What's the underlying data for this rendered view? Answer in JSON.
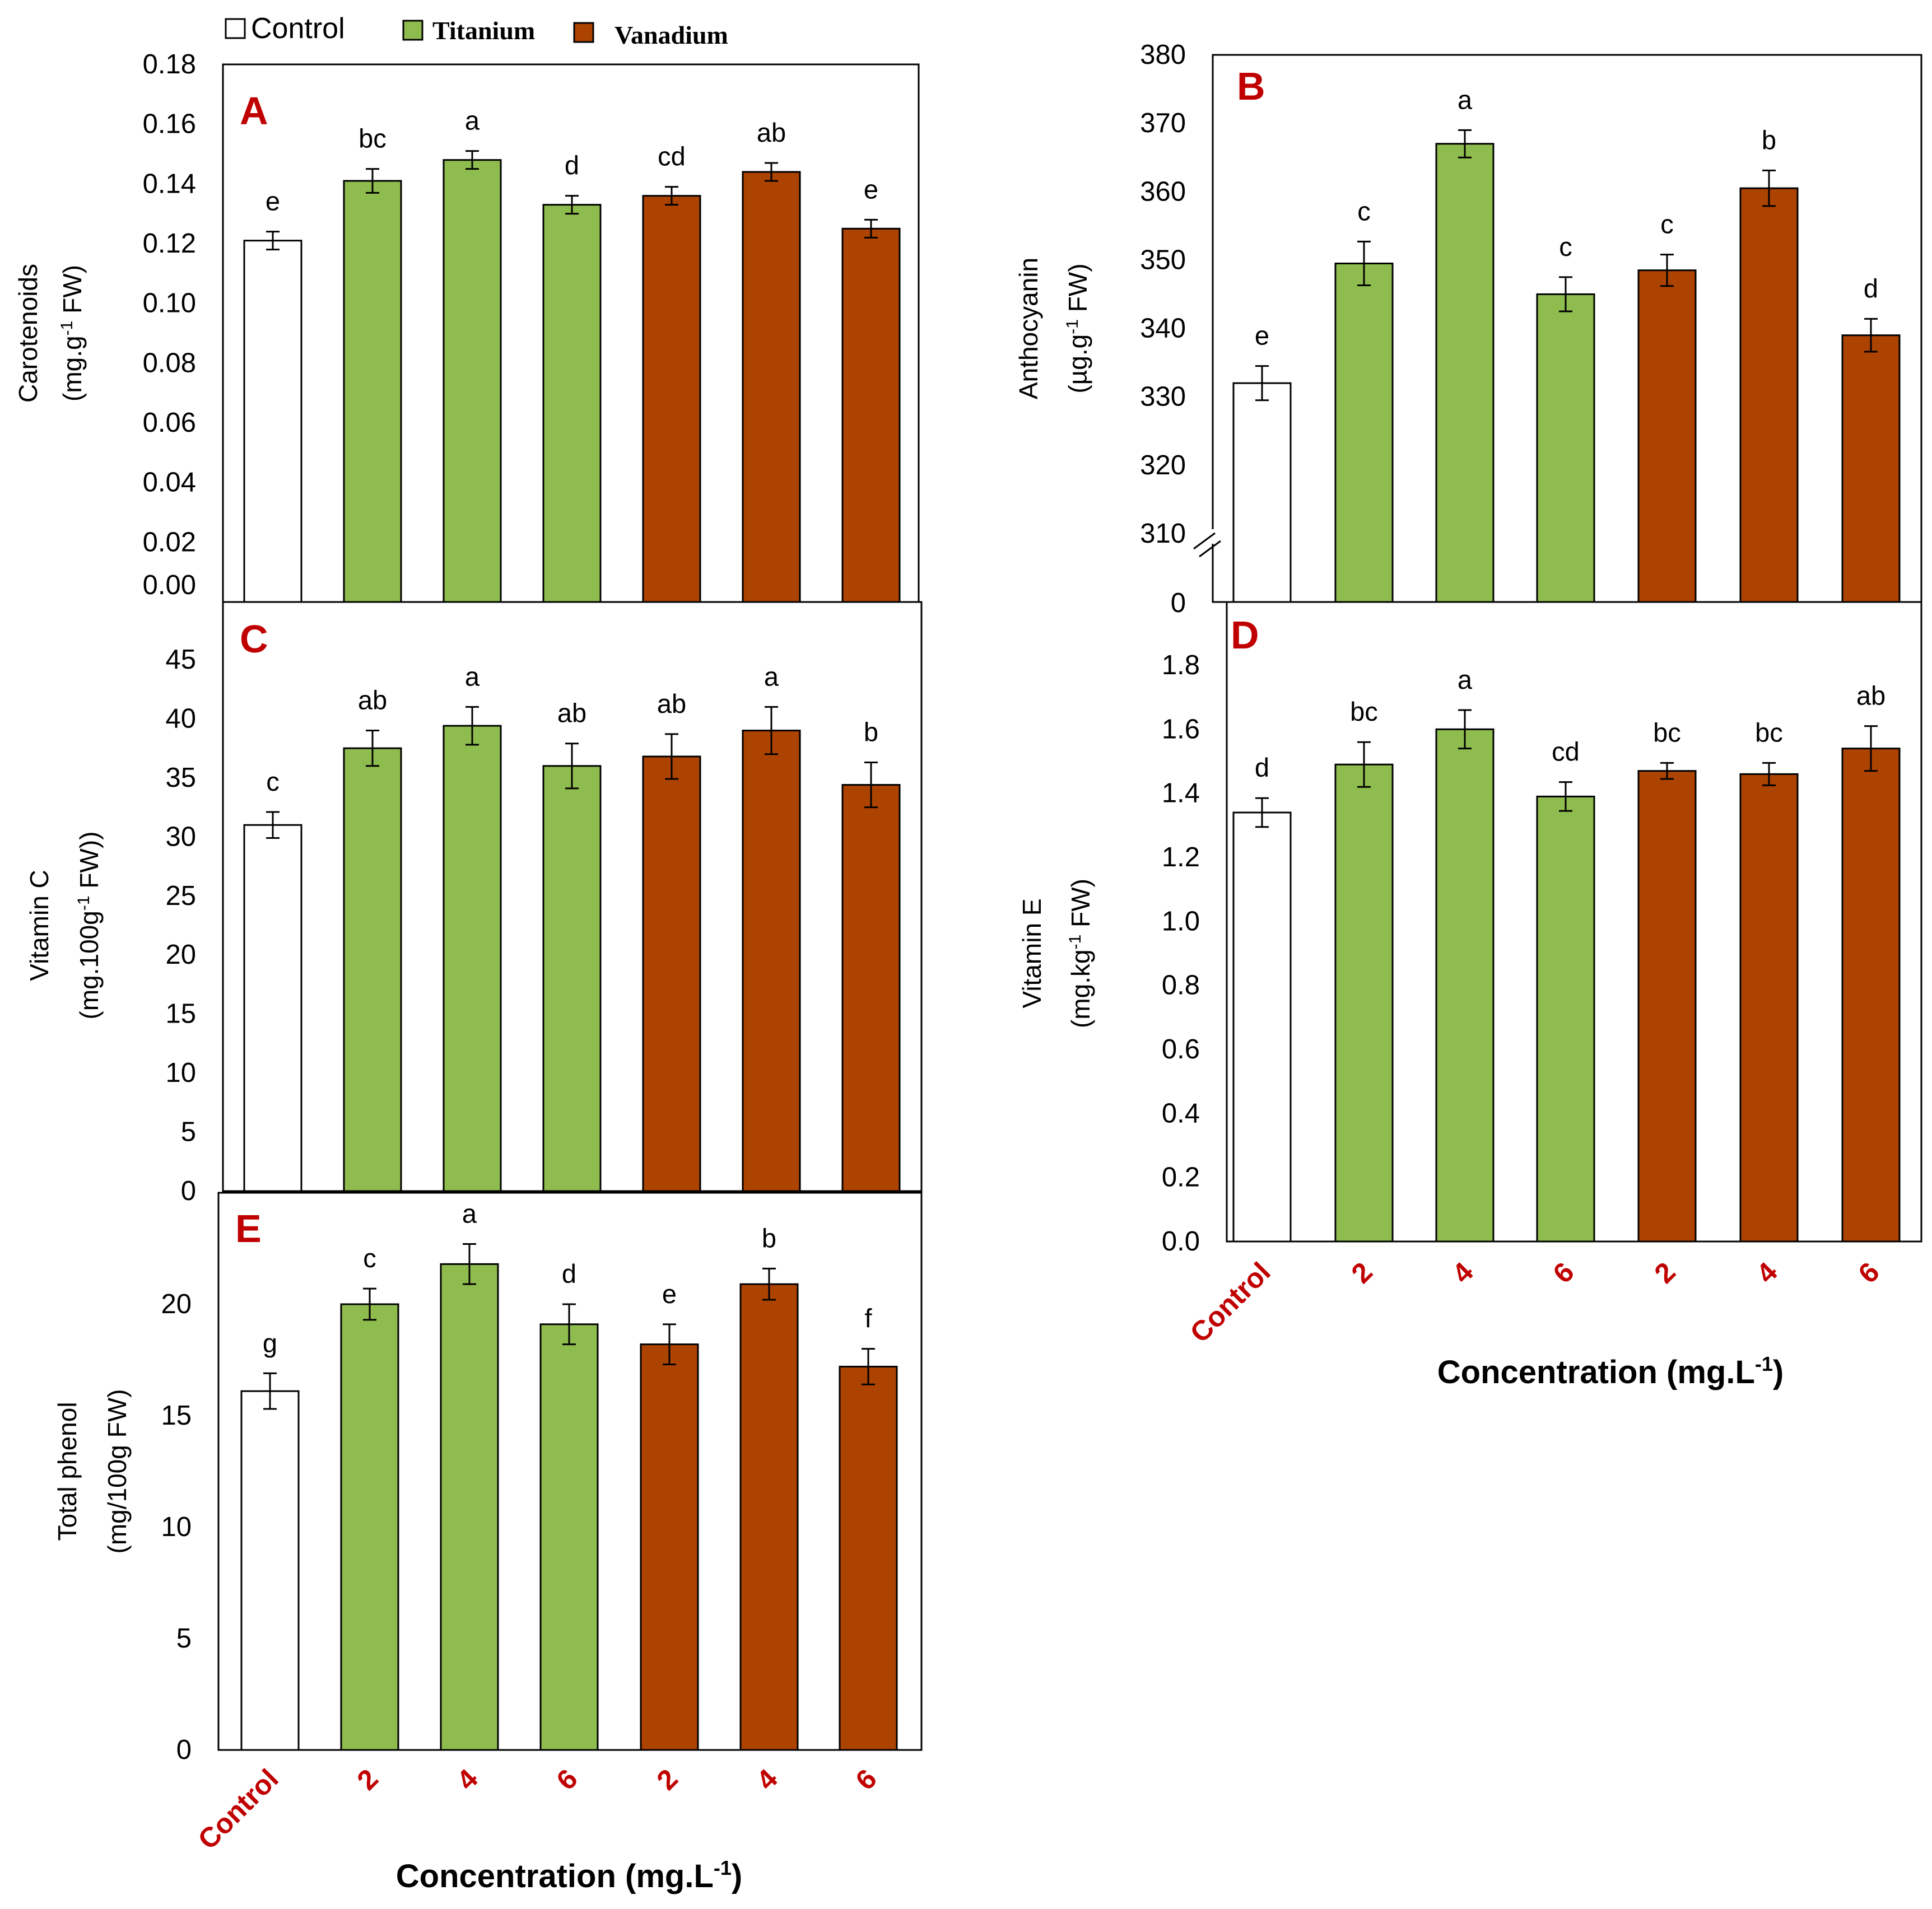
{
  "legend": [
    {
      "label": "Control",
      "color": "#ffffff"
    },
    {
      "label": "Titanium",
      "color": "#8fbc4f"
    },
    {
      "label": "Vanadium",
      "color": "#ad4300"
    }
  ],
  "x_axis": {
    "title": "Concentration (mg.L",
    "title_sup": "-1",
    "title_end": ")",
    "categories": [
      "Control",
      "2",
      "4",
      "6",
      "2",
      "4",
      "6"
    ]
  },
  "colors": {
    "control": "#ffffff",
    "titanium": "#8fbc4f",
    "vanadium": "#ad4300",
    "axis": "#000000",
    "panel_letter": "#c00000",
    "category_label": "#c00000"
  },
  "chart_data": [
    {
      "type": "bar",
      "id": "A",
      "letter": "A",
      "ylabel": {
        "line1": "Carotenoids",
        "line2_pre": "(mg.g",
        "line2_sup": "-1",
        "line2_post": " FW)"
      },
      "ylim": [
        0,
        0.18
      ],
      "ticks": [
        "0.00",
        "0.02",
        "0.04",
        "0.06",
        "0.08",
        "0.10",
        "0.12",
        "0.14",
        "0.16",
        "0.18"
      ],
      "categories": [
        "Control",
        "2",
        "4",
        "6",
        "2",
        "4",
        "6"
      ],
      "groups": [
        "Control",
        "Titanium",
        "Titanium",
        "Titanium",
        "Vanadium",
        "Vanadium",
        "Vanadium"
      ],
      "values": [
        0.121,
        0.141,
        0.148,
        0.133,
        0.136,
        0.144,
        0.125
      ],
      "errors": [
        0.003,
        0.004,
        0.003,
        0.003,
        0.003,
        0.003,
        0.003
      ],
      "letters": [
        "e",
        "bc",
        "a",
        "d",
        "cd",
        "ab",
        "e"
      ]
    },
    {
      "type": "bar",
      "id": "B",
      "letter": "B",
      "ylabel": {
        "line1": "Anthocyanin",
        "line2_pre": "(µg.g",
        "line2_sup": "-1",
        "line2_post": " FW)"
      },
      "ylim": [
        300,
        380
      ],
      "axis_break": true,
      "ticks": [
        "310",
        "320",
        "330",
        "340",
        "350",
        "360",
        "370",
        "380"
      ],
      "baseline_label": "0",
      "categories": [
        "Control",
        "2",
        "4",
        "6",
        "2",
        "4",
        "6"
      ],
      "groups": [
        "Control",
        "Titanium",
        "Titanium",
        "Titanium",
        "Vanadium",
        "Vanadium",
        "Vanadium"
      ],
      "values": [
        332,
        349.5,
        367,
        345,
        348.5,
        360.5,
        339
      ],
      "errors": [
        2.5,
        3.2,
        2,
        2.5,
        2.3,
        2.6,
        2.4
      ],
      "letters": [
        "e",
        "c",
        "a",
        "c",
        "c",
        "b",
        "d"
      ]
    },
    {
      "type": "bar",
      "id": "C",
      "letter": "C",
      "ylabel": {
        "line1": "Vitamin C",
        "line2_pre": "(mg.100g",
        "line2_sup": "-1",
        "line2_post": " FW))"
      },
      "ylim": [
        0,
        45
      ],
      "ticks": [
        "0",
        "5",
        "10",
        "15",
        "20",
        "25",
        "30",
        "35",
        "40",
        "45"
      ],
      "categories": [
        "Control",
        "2",
        "4",
        "6",
        "2",
        "4",
        "6"
      ],
      "groups": [
        "Control",
        "Titanium",
        "Titanium",
        "Titanium",
        "Vanadium",
        "Vanadium",
        "Vanadium"
      ],
      "values": [
        31,
        37.5,
        39.4,
        36,
        36.8,
        39,
        34.4
      ],
      "errors": [
        1.1,
        1.5,
        1.6,
        1.9,
        1.9,
        2,
        1.9
      ],
      "letters": [
        "c",
        "ab",
        "a",
        "ab",
        "ab",
        "a",
        "b"
      ]
    },
    {
      "type": "bar",
      "id": "D",
      "letter": "D",
      "ylabel": {
        "line1": "Vitamin E",
        "line2_pre": "(mg.kg",
        "line2_sup": "-1",
        "line2_post": " FW)"
      },
      "ylim": [
        0,
        1.8
      ],
      "ticks": [
        "0.0",
        "0.2",
        "0.4",
        "0.6",
        "0.8",
        "1.0",
        "1.2",
        "1.4",
        "1.6",
        "1.8"
      ],
      "categories": [
        "Control",
        "2",
        "4",
        "6",
        "2",
        "4",
        "6"
      ],
      "groups": [
        "Control",
        "Titanium",
        "Titanium",
        "Titanium",
        "Vanadium",
        "Vanadium",
        "Vanadium"
      ],
      "values": [
        1.34,
        1.49,
        1.6,
        1.39,
        1.47,
        1.46,
        1.54
      ],
      "errors": [
        0.045,
        0.07,
        0.06,
        0.045,
        0.025,
        0.035,
        0.07
      ],
      "letters": [
        "d",
        "bc",
        "a",
        "cd",
        "bc",
        "bc",
        "ab"
      ]
    },
    {
      "type": "bar",
      "id": "E",
      "letter": "E",
      "ylabel": {
        "line1": "Total phenol",
        "line2_pre": "(mg/100g FW)",
        "line2_sup": "",
        "line2_post": ""
      },
      "ylim": [
        0,
        25
      ],
      "ticks": [
        "0",
        "5",
        "10",
        "15",
        "20"
      ],
      "categories": [
        "Control",
        "2",
        "4",
        "6",
        "2",
        "4",
        "6"
      ],
      "groups": [
        "Control",
        "Titanium",
        "Titanium",
        "Titanium",
        "Vanadium",
        "Vanadium",
        "Vanadium"
      ],
      "values": [
        16.1,
        20,
        21.8,
        19.1,
        18.2,
        20.9,
        17.2
      ],
      "errors": [
        0.8,
        0.7,
        0.9,
        0.9,
        0.9,
        0.7,
        0.8
      ],
      "letters": [
        "g",
        "c",
        "a",
        "d",
        "e",
        "b",
        "f"
      ]
    }
  ]
}
